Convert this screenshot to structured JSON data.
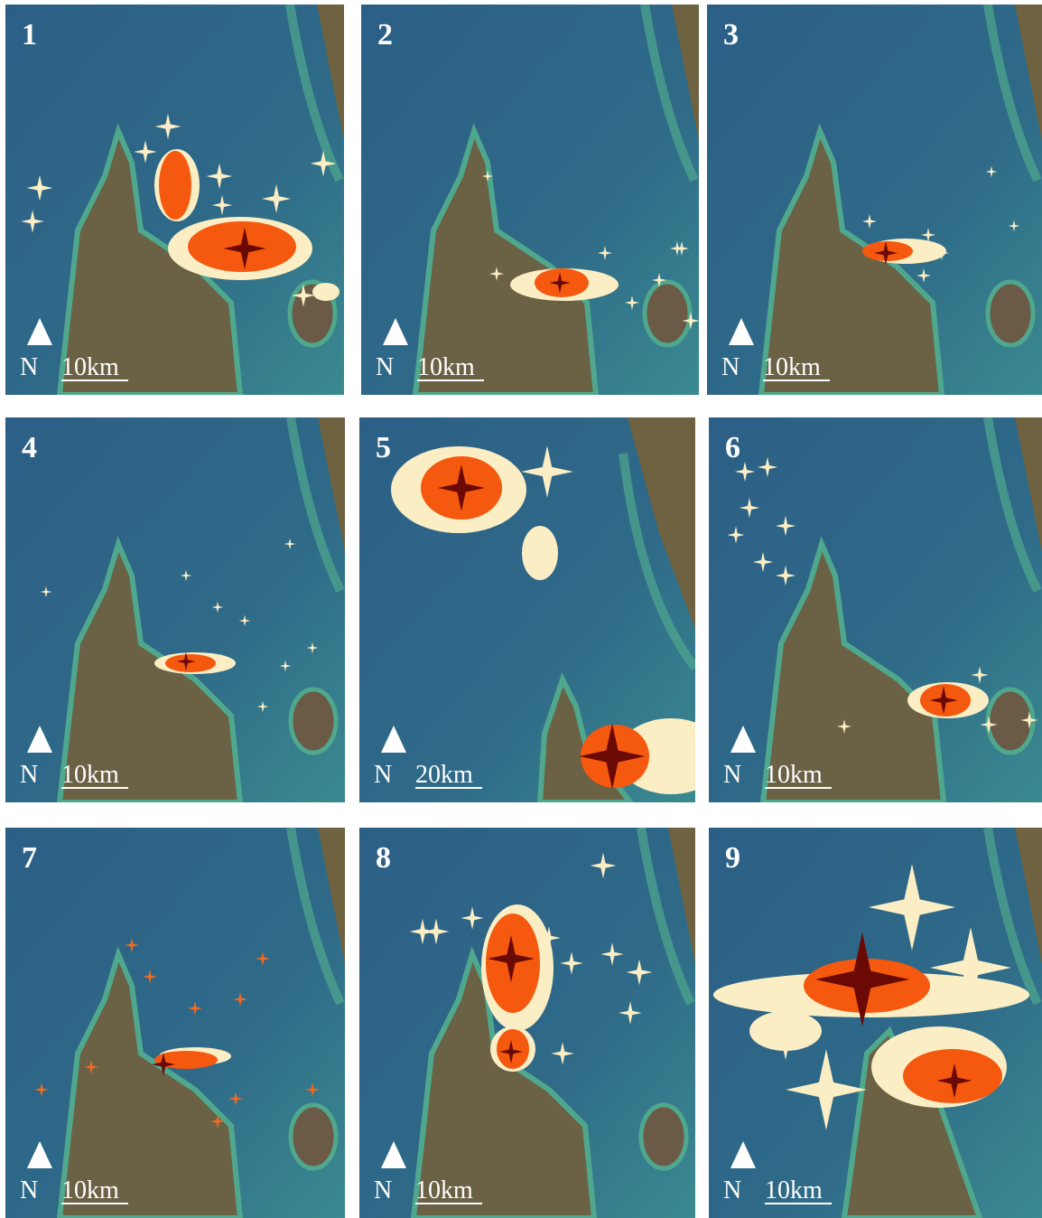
{
  "panels": [
    {
      "label": "1",
      "north": "N",
      "scale": "10km"
    },
    {
      "label": "2",
      "north": "N",
      "scale": "10km"
    },
    {
      "label": "3",
      "north": "N",
      "scale": "10km"
    },
    {
      "label": "4",
      "north": "N",
      "scale": "10km"
    },
    {
      "label": "5",
      "north": "N",
      "scale": "20km"
    },
    {
      "label": "6",
      "north": "N",
      "scale": "10km"
    },
    {
      "label": "7",
      "north": "N",
      "scale": "10km"
    },
    {
      "label": "8",
      "north": "N",
      "scale": "10km"
    },
    {
      "label": "9",
      "north": "N",
      "scale": "10km"
    }
  ]
}
